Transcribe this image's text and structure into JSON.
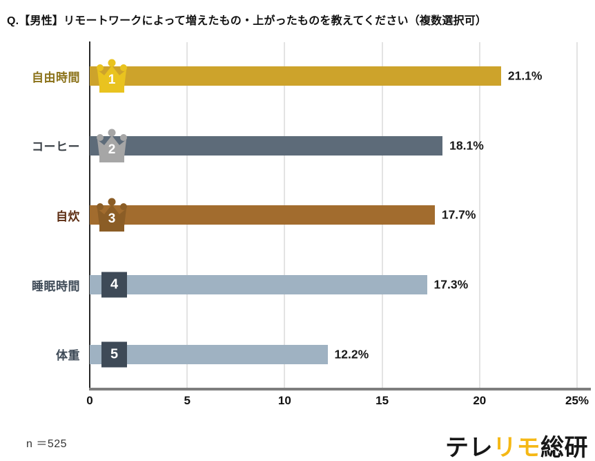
{
  "title": "Q.【男性】リモートワークによって増えたもの・上がったものを教えてください（複数選択可）",
  "sample_size": "n ＝525",
  "logo": {
    "pre": "テレ",
    "accent": "リモ",
    "post": "総研",
    "accent_color": "#F5B815"
  },
  "colors": {
    "x_axis": "#7E7E7E",
    "y_axis": "#262626",
    "gridline": "#E3E3E3",
    "value_text": "#1A1A1A"
  },
  "chart_data": {
    "type": "bar",
    "orientation": "horizontal",
    "title": "Q.【男性】リモートワークによって増えたもの・上がったものを教えてください（複数選択可）",
    "categories": [
      "自由時間",
      "コーヒー",
      "自炊",
      "睡眠時間",
      "体重"
    ],
    "values": [
      21.1,
      18.1,
      17.7,
      17.3,
      12.2
    ],
    "value_labels": [
      "21.1%",
      "18.1%",
      "17.7%",
      "17.3%",
      "12.2%"
    ],
    "ranks": [
      "1",
      "2",
      "3",
      "4",
      "5"
    ],
    "badge_types": [
      "crown",
      "crown",
      "crown",
      "square",
      "square"
    ],
    "bar_colors": [
      "#CDA32B",
      "#5D6B79",
      "#A26C2E",
      "#9FB2C2",
      "#9FB2C2"
    ],
    "badge_colors": [
      "#E9C31F",
      "#A6A6A6",
      "#8B5D26",
      "#3E4A57",
      "#3E4A57"
    ],
    "category_label_colors": [
      "#8A7118",
      "#3C4248",
      "#5B2B10",
      "#3E4A57",
      "#3E4A57"
    ],
    "xlim": [
      0,
      25
    ],
    "xticks": [
      0,
      5,
      10,
      15,
      20,
      25
    ],
    "xtick_labels": [
      "0",
      "5",
      "10",
      "15",
      "20",
      "25%"
    ],
    "grid": true,
    "legend": false,
    "sample_note": "n ＝525"
  }
}
